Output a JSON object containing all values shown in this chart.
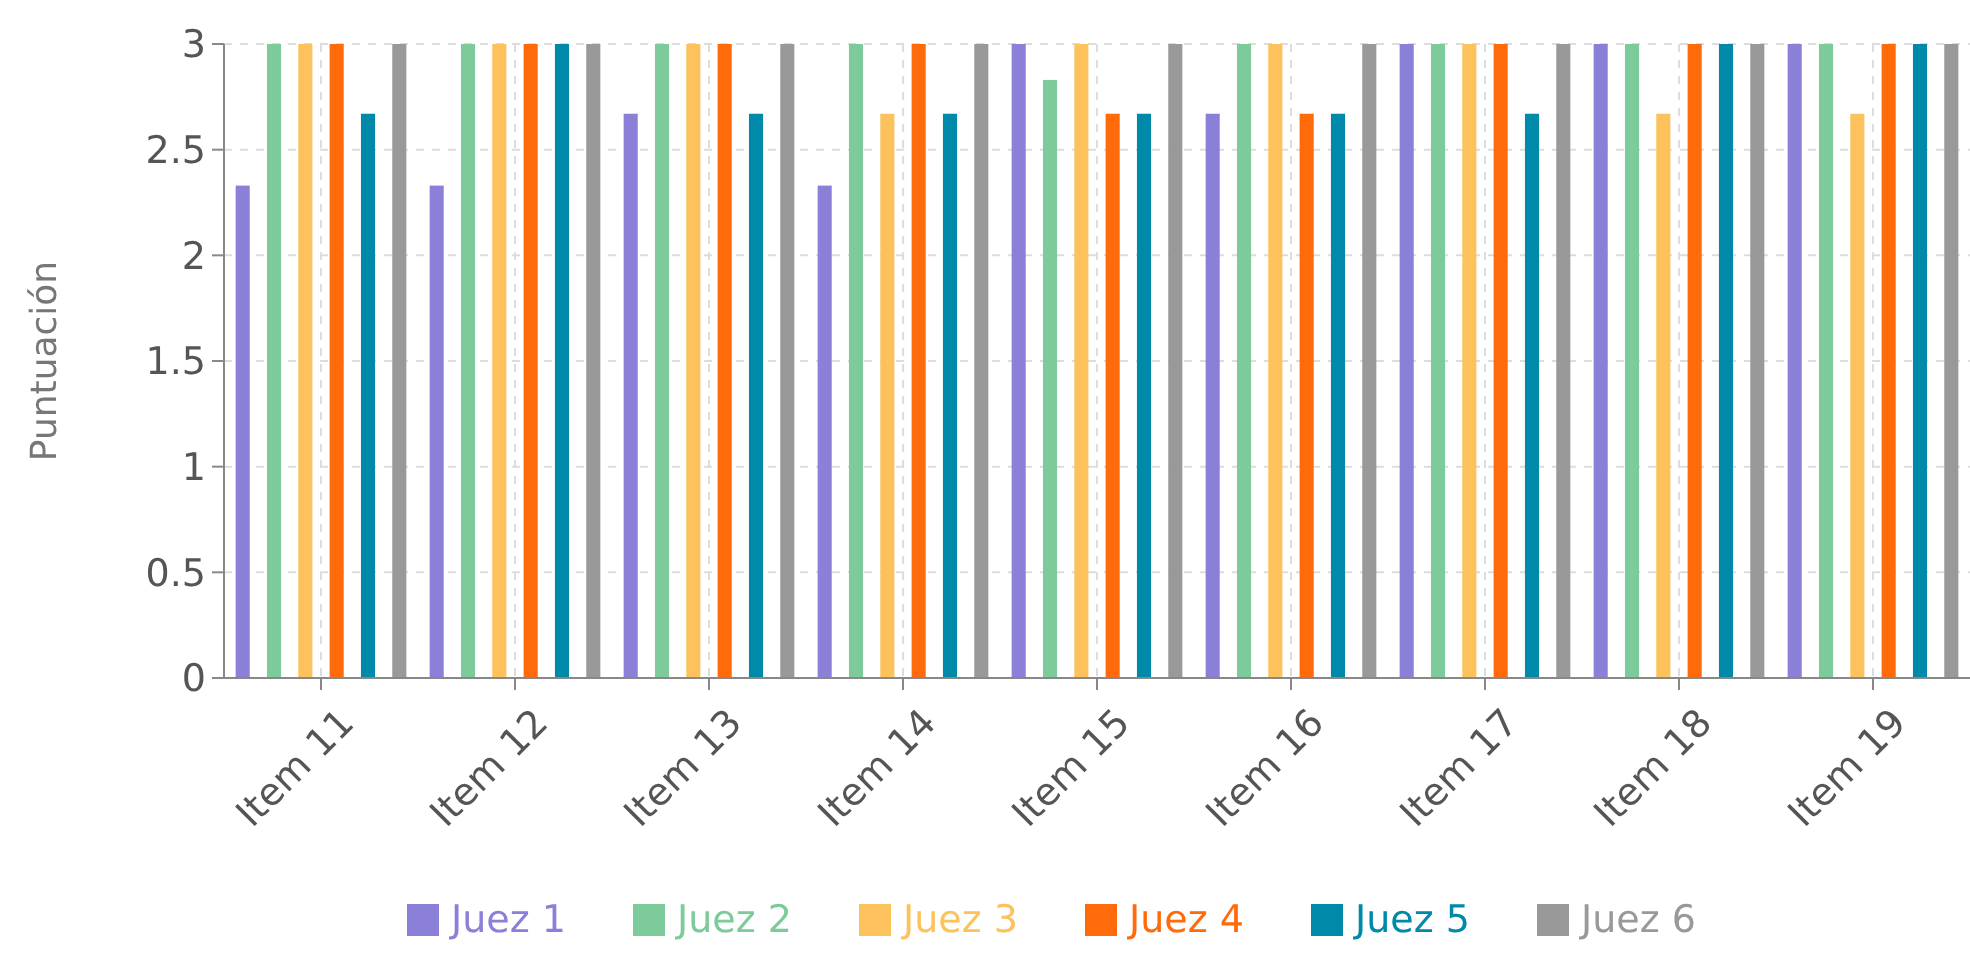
{
  "chart_data": {
    "type": "bar",
    "ylabel": "Puntuación",
    "categories": [
      "Item 11",
      "Item 12",
      "Item 13",
      "Item 14",
      "Item 15",
      "Item 16",
      "Item 17",
      "Item 18",
      "Item 19"
    ],
    "series": [
      {
        "name": "Juez 1",
        "color": "#8a80d8",
        "values": [
          2.33,
          2.33,
          2.67,
          2.33,
          3,
          2.67,
          3,
          3,
          3
        ]
      },
      {
        "name": "Juez 2",
        "color": "#7dca9a",
        "values": [
          3,
          3,
          3,
          3,
          2.83,
          3,
          3,
          3,
          3
        ]
      },
      {
        "name": "Juez 3",
        "color": "#fdc25c",
        "values": [
          3,
          3,
          3,
          2.67,
          3,
          3,
          3,
          2.67,
          2.67
        ]
      },
      {
        "name": "Juez 4",
        "color": "#ff6a0b",
        "values": [
          3,
          3,
          3,
          3,
          2.67,
          2.67,
          3,
          3,
          3
        ]
      },
      {
        "name": "Juez 5",
        "color": "#0089a8",
        "values": [
          2.67,
          3,
          2.67,
          2.67,
          2.67,
          2.67,
          2.67,
          3,
          3
        ]
      },
      {
        "name": "Juez 6",
        "color": "#999999",
        "values": [
          3,
          3,
          3,
          3,
          3,
          3,
          3,
          3,
          3
        ]
      }
    ],
    "ylim": [
      0,
      3
    ],
    "yticks": [
      0,
      0.5,
      1,
      1.5,
      2,
      2.5,
      3
    ],
    "grid": true,
    "legend": "bottom"
  }
}
